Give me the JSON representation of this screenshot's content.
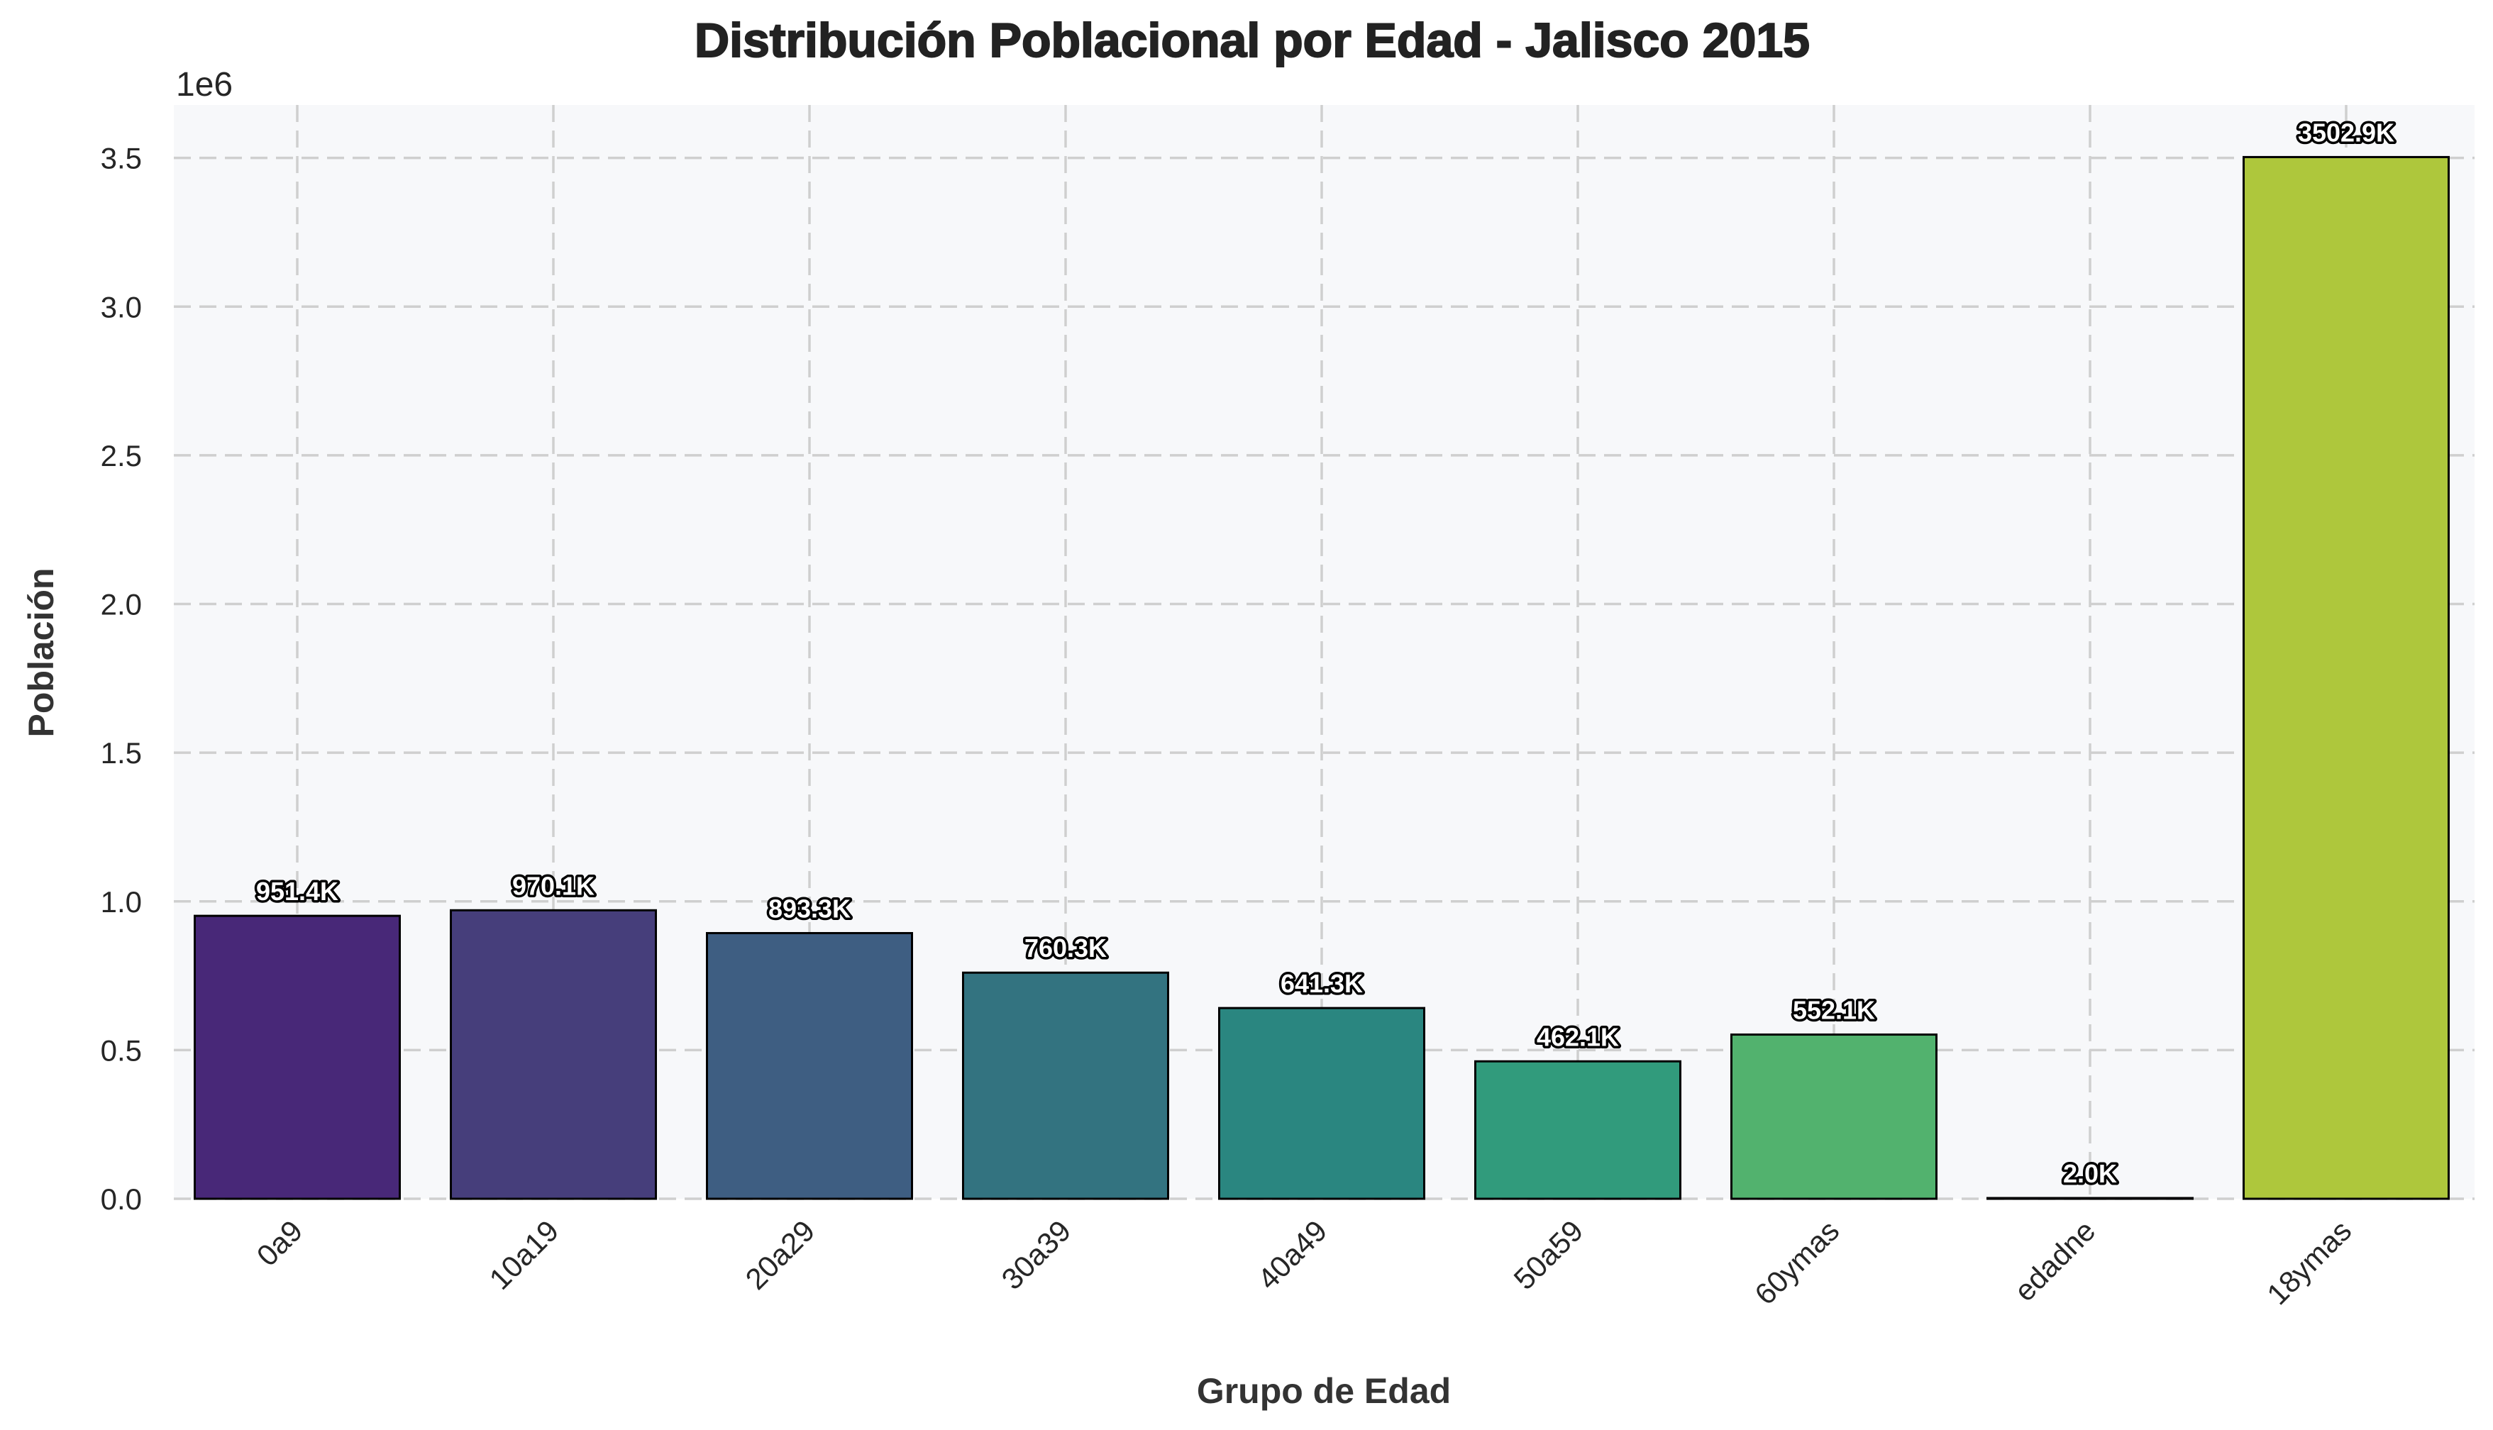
{
  "chart_data": {
    "type": "bar",
    "title": "Distribución Poblacional por Edad - Jalisco 2015",
    "xlabel": "Grupo de Edad",
    "ylabel": "Población",
    "y_scale_label": "1e6",
    "categories": [
      "0a9",
      "10a19",
      "20a29",
      "30a39",
      "40a49",
      "50a59",
      "60ymas",
      "edadne",
      "18ymas"
    ],
    "values": [
      951400,
      970100,
      893300,
      760300,
      641300,
      462100,
      552100,
      2000,
      3502900
    ],
    "value_labels": [
      "951.4K",
      "970.1K",
      "893.3K",
      "760.3K",
      "641.3K",
      "462.1K",
      "552.1K",
      "2.0K",
      "3502.9K"
    ],
    "ylim": [
      0,
      3678045
    ],
    "yticks": [
      0,
      500000,
      1000000,
      1500000,
      2000000,
      2500000,
      3000000,
      3500000
    ],
    "ytick_labels": [
      "0.0",
      "0.5",
      "1.0",
      "1.5",
      "2.0",
      "2.5",
      "3.0",
      "3.5"
    ],
    "bar_colors": [
      "#482878",
      "#463e7b",
      "#3e5e82",
      "#337380",
      "#2a8680",
      "#319b7c",
      "#52b26e",
      "#94c64f",
      "#aec73c"
    ],
    "grid": true,
    "legend": "none",
    "plot_background": "#f7f8fa",
    "x_tick_rotation": "45 degrees"
  }
}
